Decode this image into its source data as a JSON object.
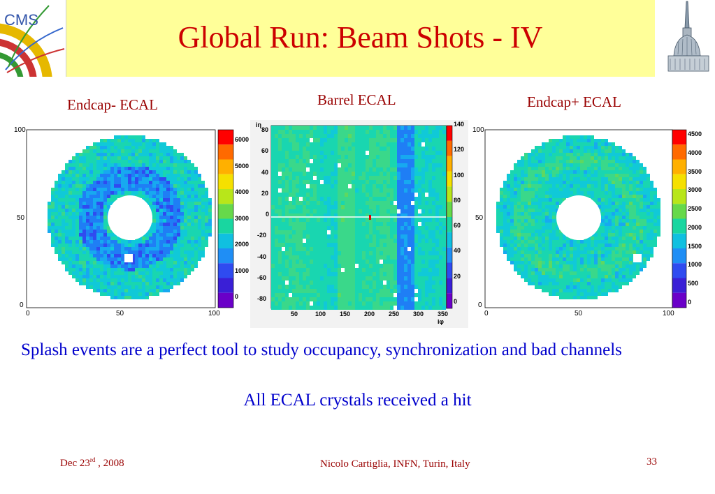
{
  "slide": {
    "title": "Global Run: Beam Shots - IV",
    "body_text": "Splash events are a perfect tool  to study occupancy, synchronization and bad channels",
    "highlight_text": "All ECAL crystals received a hit"
  },
  "logos": {
    "cms_text": "CMS"
  },
  "panels": {
    "endcap_minus": {
      "label": "Endcap- ECAL",
      "y_ticks": [
        "100",
        "50",
        "0"
      ],
      "x_ticks": [
        "0",
        "50",
        "100"
      ],
      "scale_ticks": [
        "6000",
        "5000",
        "4000",
        "3000",
        "2000",
        "1000",
        "0"
      ]
    },
    "barrel": {
      "label": "Barrel ECAL",
      "y_axis_label": "iη",
      "x_axis_label": "iφ",
      "y_ticks": [
        "80",
        "60",
        "40",
        "20",
        "0",
        "-20",
        "-40",
        "-60",
        "-80"
      ],
      "x_ticks": [
        "50",
        "100",
        "150",
        "200",
        "250",
        "300",
        "350"
      ],
      "scale_ticks": [
        "140",
        "120",
        "100",
        "80",
        "60",
        "40",
        "20",
        "0"
      ]
    },
    "endcap_plus": {
      "label": "Endcap+ ECAL",
      "y_ticks": [
        "100",
        "50",
        "0"
      ],
      "x_ticks": [
        "0",
        "50",
        "100"
      ],
      "scale_ticks": [
        "4500",
        "4000",
        "3500",
        "3000",
        "2500",
        "2000",
        "1500",
        "1000",
        "500",
        "0"
      ]
    }
  },
  "footer": {
    "date_prefix": "Dec 23",
    "date_sup": "rd",
    "date_suffix": " , 2008",
    "author": "Nicolo Cartiglia, INFN, Turin, Italy",
    "page": "33"
  }
}
